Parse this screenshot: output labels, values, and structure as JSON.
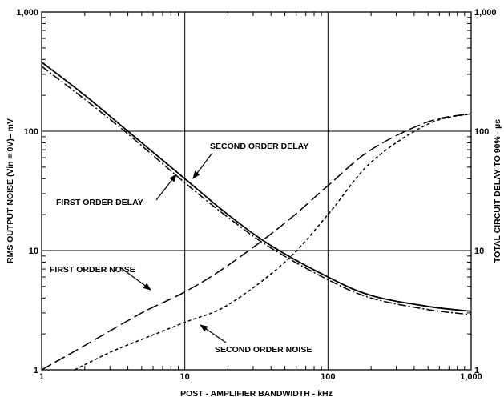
{
  "chart_data": {
    "type": "line",
    "title": "",
    "xlabel": "POST - AMPLIFIER BANDWIDTH - kHz",
    "ylabel_left": "RMS OUTPUT NOISE (Vin = 0V)– mV",
    "ylabel_right": "TOTAL CIRCUIT DELAY TO 90% - µs",
    "x_scale": "log",
    "y_scale": "log",
    "xlim": [
      1,
      1000
    ],
    "ylim": [
      1,
      1000
    ],
    "x_ticks": [
      "1",
      "10",
      "100",
      "1,000"
    ],
    "y_ticks_left": [
      "1",
      "10",
      "100",
      "1,000"
    ],
    "y_ticks_right": [
      "1",
      "10",
      "100",
      "1,000"
    ],
    "grid": true,
    "series": [
      {
        "name": "SECOND ORDER DELAY",
        "style": "solid",
        "x": [
          1,
          2,
          4,
          10,
          20,
          40,
          100,
          200,
          500,
          1000
        ],
        "y": [
          380,
          200,
          100,
          40,
          20,
          11,
          6,
          4.2,
          3.4,
          3.1
        ]
      },
      {
        "name": "FIRST ORDER DELAY",
        "style": "dash-dot",
        "x": [
          1,
          2,
          4,
          10,
          20,
          40,
          100,
          200,
          500,
          1000
        ],
        "y": [
          350,
          185,
          95,
          37,
          19,
          10.5,
          5.7,
          4,
          3.2,
          2.9
        ]
      },
      {
        "name": "FIRST ORDER NOISE",
        "style": "long-dash",
        "x": [
          1,
          2,
          5,
          10,
          20,
          50,
          100,
          200,
          500,
          1000
        ],
        "y": [
          1.0,
          1.6,
          3.0,
          4.5,
          7.5,
          17,
          35,
          70,
          120,
          140
        ]
      },
      {
        "name": "SECOND ORDER NOISE",
        "style": "short-dash",
        "x": [
          1.7,
          3,
          5,
          10,
          20,
          50,
          100,
          200,
          500,
          1000
        ],
        "y": [
          1.0,
          1.4,
          1.8,
          2.5,
          3.5,
          8,
          20,
          55,
          115,
          140
        ]
      }
    ],
    "annotations": [
      "SECOND ORDER DELAY",
      "FIRST ORDER DELAY",
      "FIRST ORDER NOISE",
      "SECOND ORDER NOISE"
    ],
    "colors": {
      "line": "#000000",
      "background": "#ffffff"
    }
  }
}
